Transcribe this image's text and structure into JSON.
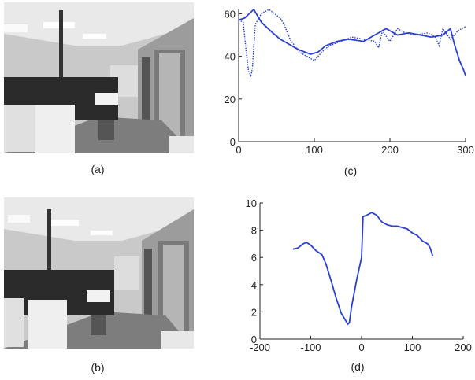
{
  "figure": {
    "captions": {
      "a": "(a)",
      "b": "(b)",
      "c": "(c)",
      "d": "(d)"
    }
  },
  "colors": {
    "line": "#2a3fd6",
    "axis": "#222222"
  },
  "chart_data": [
    {
      "type": "line",
      "title": "",
      "xlabel": "",
      "ylabel": "",
      "xlim": [
        0,
        300
      ],
      "ylim": [
        0,
        62
      ],
      "xticks": [
        0,
        100,
        200,
        300
      ],
      "yticks": [
        0,
        20,
        40,
        60
      ],
      "series": [
        {
          "style": "solid",
          "x": [
            0,
            8,
            14,
            20,
            30,
            45,
            55,
            65,
            80,
            95,
            105,
            115,
            130,
            145,
            165,
            180,
            195,
            210,
            225,
            240,
            255,
            270,
            280,
            285,
            292,
            297,
            300
          ],
          "y": [
            57,
            58,
            60,
            62,
            56,
            51,
            48,
            46,
            43,
            41,
            42,
            45,
            47,
            48,
            47,
            50,
            53,
            50,
            51,
            50,
            49,
            50,
            53,
            46,
            38,
            34,
            31
          ]
        },
        {
          "style": "dotted",
          "x": [
            0,
            6,
            10,
            13,
            16,
            18,
            22,
            30,
            40,
            55,
            60,
            68,
            80,
            90,
            100,
            110,
            120,
            135,
            150,
            165,
            180,
            185,
            190,
            200,
            210,
            220,
            235,
            250,
            260,
            265,
            270,
            280,
            290,
            300
          ],
          "y": [
            57,
            56,
            42,
            33,
            31,
            34,
            55,
            60,
            62,
            58,
            55,
            48,
            42,
            40,
            38,
            42,
            45,
            47,
            49,
            48,
            47,
            44,
            52,
            47,
            53,
            51,
            50,
            51,
            49,
            45,
            53,
            48,
            52,
            54
          ]
        }
      ]
    },
    {
      "type": "line",
      "title": "",
      "xlabel": "",
      "ylabel": "",
      "xlim": [
        -200,
        200
      ],
      "ylim": [
        0,
        10
      ],
      "xticks": [
        -200,
        -100,
        0,
        100,
        200
      ],
      "yticks": [
        0,
        2,
        4,
        6,
        8,
        10
      ],
      "series": [
        {
          "style": "solid",
          "x": [
            -135,
            -125,
            -115,
            -108,
            -100,
            -90,
            -78,
            -70,
            -60,
            -50,
            -40,
            -32,
            -27,
            -24,
            -20,
            -10,
            0,
            3,
            10,
            20,
            30,
            40,
            50,
            60,
            70,
            80,
            90,
            100,
            110,
            120,
            130,
            135,
            140
          ],
          "y": [
            6.6,
            6.7,
            7.0,
            7.1,
            6.9,
            6.5,
            6.2,
            5.5,
            4.3,
            3.0,
            1.9,
            1.4,
            1.1,
            1.2,
            2.3,
            4.3,
            6.0,
            9.0,
            9.1,
            9.3,
            9.1,
            8.6,
            8.4,
            8.3,
            8.3,
            8.2,
            8.1,
            7.8,
            7.6,
            7.2,
            7.0,
            6.7,
            6.1
          ]
        }
      ]
    }
  ]
}
